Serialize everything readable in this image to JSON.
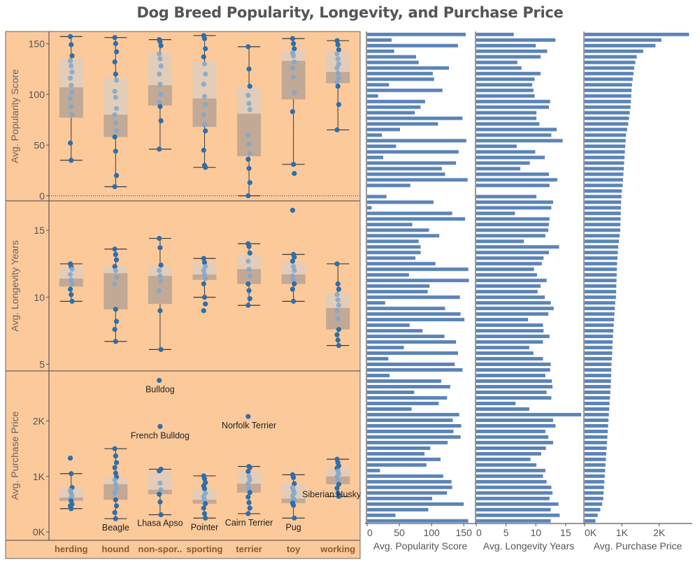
{
  "title": "Dog Breed Popularity, Longevity, and Purchase Price",
  "colors": {
    "panel_bg": "#fcc99b",
    "dot": "#2f6ea8",
    "dot_light": "#7da7cf",
    "box_upper": "#e3cdb9",
    "box_lower": "#c2a995",
    "bar": "#5b84b8",
    "axis_text": "#555555",
    "category_text": "#8b5a2b"
  },
  "chart_data": [
    {
      "type": "box",
      "ylabel": "Avg. Popularity Score",
      "y_ticks": [
        0,
        50,
        100,
        150
      ],
      "y_tick_labels": [
        "0",
        "50",
        "100",
        "150"
      ],
      "ylim": [
        -5,
        162
      ],
      "zero_reference_line": true,
      "categories": [
        "herding",
        "hound",
        "non-spor..",
        "sporting",
        "terrier",
        "toy",
        "working"
      ],
      "boxes": [
        {
          "min": 35,
          "q1": 77,
          "median": 107,
          "q3": 135,
          "max": 157,
          "points": [
            157,
            149,
            138,
            133,
            128,
            122,
            116,
            109,
            102,
            96,
            88,
            80,
            52,
            35
          ]
        },
        {
          "min": 9,
          "q1": 58,
          "median": 80,
          "q3": 116,
          "max": 156,
          "points": [
            156,
            150,
            142,
            132,
            120,
            114,
            103,
            97,
            86,
            80,
            72,
            64,
            58,
            44,
            20,
            9
          ]
        },
        {
          "min": 46,
          "q1": 89,
          "median": 109,
          "q3": 141,
          "max": 154,
          "points": [
            154,
            152,
            148,
            140,
            135,
            128,
            120,
            110,
            100,
            92,
            88,
            74,
            46
          ]
        },
        {
          "min": 28,
          "q1": 68,
          "median": 96,
          "q3": 132,
          "max": 158,
          "points": [
            158,
            155,
            145,
            137,
            130,
            120,
            110,
            98,
            90,
            80,
            70,
            64,
            45,
            30,
            28
          ]
        },
        {
          "min": 0,
          "q1": 39,
          "median": 81,
          "q3": 107,
          "max": 147,
          "points": [
            147,
            125,
            108,
            99,
            91,
            85,
            60,
            51,
            42,
            36,
            27,
            13,
            0
          ]
        },
        {
          "min": 31,
          "q1": 95,
          "median": 133,
          "q3": 143,
          "max": 155,
          "points": [
            155,
            150,
            145,
            141,
            138,
            132,
            126,
            117,
            102,
            83,
            31,
            22
          ]
        },
        {
          "min": 65,
          "q1": 111,
          "median": 122,
          "q3": 143,
          "max": 153,
          "points": [
            153,
            149,
            144,
            140,
            135,
            130,
            126,
            121,
            116,
            112,
            108,
            90,
            65
          ]
        }
      ]
    },
    {
      "type": "box",
      "ylabel": "Avg. Longevity Years",
      "y_ticks": [
        5,
        10,
        15
      ],
      "y_tick_labels": [
        "5",
        "10",
        "15"
      ],
      "ylim": [
        4.5,
        17.2
      ],
      "categories": [
        "herding",
        "hound",
        "non-spor..",
        "sporting",
        "terrier",
        "toy",
        "working"
      ],
      "boxes": [
        {
          "min": 9.7,
          "q1": 10.8,
          "median": 11.4,
          "q3": 12.2,
          "max": 12.5,
          "points": [
            12.5,
            12.3,
            12.1,
            11.7,
            11.3,
            11.0,
            10.6,
            10.2,
            9.7
          ]
        },
        {
          "min": 6.7,
          "q1": 9.1,
          "median": 11.8,
          "q3": 12.3,
          "max": 13.6,
          "points": [
            13.6,
            13.2,
            12.8,
            12.3,
            12.0,
            11.5,
            11.0,
            9.1,
            8.2,
            7.6,
            6.7
          ]
        },
        {
          "min": 6.1,
          "q1": 9.5,
          "median": 11.6,
          "q3": 12.3,
          "max": 14.4,
          "points": [
            14.4,
            13.7,
            12.4,
            12.0,
            11.6,
            11.2,
            10.5,
            9.0,
            6.1
          ]
        },
        {
          "min": 10.0,
          "q1": 11.3,
          "median": 11.7,
          "q3": 12.6,
          "max": 12.9,
          "points": [
            12.9,
            12.6,
            12.3,
            12.0,
            11.7,
            11.4,
            11.0,
            10.0,
            9.5,
            9.0
          ]
        },
        {
          "min": 9.4,
          "q1": 11.0,
          "median": 12.1,
          "q3": 13.2,
          "max": 14.0,
          "points": [
            14.0,
            13.8,
            13.3,
            12.7,
            12.1,
            11.6,
            11.0,
            10.5,
            9.9,
            9.4
          ]
        },
        {
          "min": 9.7,
          "q1": 11.0,
          "median": 11.7,
          "q3": 12.6,
          "max": 13.2,
          "points": [
            16.5,
            13.2,
            13.0,
            12.7,
            12.3,
            12.0,
            11.6,
            11.3,
            11.0,
            10.6,
            9.7
          ]
        },
        {
          "min": 6.4,
          "q1": 7.6,
          "median": 9.2,
          "q3": 10.3,
          "max": 12.5,
          "points": [
            12.5,
            11.0,
            10.6,
            10.2,
            9.8,
            9.4,
            9.0,
            8.4,
            7.6,
            7.2,
            6.8,
            6.4
          ]
        }
      ]
    },
    {
      "type": "box",
      "ylabel": "Avg. Purchase Price",
      "y_ticks": [
        0,
        1000,
        2000
      ],
      "y_tick_labels": [
        "0K",
        "1K",
        "2K"
      ],
      "ylim": [
        -150,
        2900
      ],
      "categories": [
        "herding",
        "hound",
        "non-spor..",
        "sporting",
        "terrier",
        "toy",
        "working"
      ],
      "boxes": [
        {
          "min": 420,
          "q1": 560,
          "median": 620,
          "q3": 800,
          "max": 1050,
          "points": [
            1330,
            1050,
            800,
            750,
            700,
            650,
            600,
            560,
            500,
            470,
            420
          ]
        },
        {
          "min": 240,
          "q1": 580,
          "median": 860,
          "q3": 970,
          "max": 1500,
          "points": [
            1500,
            1370,
            1250,
            1160,
            1060,
            990,
            940,
            860,
            780,
            700,
            580,
            470,
            350,
            240
          ]
        },
        {
          "min": 310,
          "q1": 680,
          "median": 760,
          "q3": 1100,
          "max": 1130,
          "points": [
            2730,
            1900,
            1130,
            1100,
            880,
            760,
            680,
            540,
            310
          ]
        },
        {
          "min": 250,
          "q1": 510,
          "median": 580,
          "q3": 780,
          "max": 1010,
          "points": [
            1010,
            960,
            890,
            830,
            780,
            700,
            640,
            580,
            510,
            430,
            330,
            250
          ]
        },
        {
          "min": 330,
          "q1": 710,
          "median": 870,
          "q3": 1090,
          "max": 1180,
          "points": [
            2080,
            1180,
            1160,
            1090,
            1000,
            940,
            870,
            780,
            710,
            630,
            530,
            430,
            330
          ]
        },
        {
          "min": 250,
          "q1": 520,
          "median": 600,
          "q3": 870,
          "max": 1030,
          "points": [
            1030,
            980,
            870,
            800,
            750,
            700,
            650,
            600,
            560,
            520,
            480,
            250
          ]
        },
        {
          "min": 640,
          "q1": 860,
          "median": 1000,
          "q3": 1150,
          "max": 1310,
          "points": [
            1310,
            1250,
            1190,
            1150,
            1100,
            1050,
            1000,
            940,
            860,
            790,
            700,
            640
          ]
        }
      ],
      "annotations": [
        {
          "label": "Bulldog",
          "category": "non-spor..",
          "value": 2730
        },
        {
          "label": "French Bulldog",
          "category": "non-spor..",
          "value": 1900
        },
        {
          "label": "Norfolk Terrier",
          "category": "terrier",
          "value": 2080
        },
        {
          "label": "Beagle",
          "category": "hound",
          "value": 240
        },
        {
          "label": "Lhasa Apso",
          "category": "non-spor..",
          "value": 310
        },
        {
          "label": "Pointer",
          "category": "sporting",
          "value": 250
        },
        {
          "label": "Cairn Terrier",
          "category": "terrier",
          "value": 330
        },
        {
          "label": "Pug",
          "category": "toy",
          "value": 250
        },
        {
          "label": "Siberian Husky",
          "category": "working",
          "value": 640
        }
      ]
    },
    {
      "type": "bar",
      "orientation": "horizontal",
      "xlabel": "Avg. Popularity Score",
      "x_ticks": [
        0,
        50,
        100,
        150
      ],
      "x_tick_labels": [
        "0",
        "50",
        "100",
        "150"
      ],
      "xlim": [
        0,
        165
      ],
      "values": [
        153,
        38,
        141,
        42,
        76,
        80,
        127,
        102,
        104,
        34,
        117,
        17,
        90,
        83,
        74,
        148,
        110,
        51,
        23,
        154,
        45,
        142,
        25,
        138,
        116,
        121,
        156,
        67,
        0,
        30,
        103,
        7,
        132,
        152,
        70,
        96,
        112,
        80,
        83,
        83,
        75,
        106,
        157,
        65,
        158,
        97,
        94,
        144,
        28,
        121,
        145,
        151,
        66,
        86,
        120,
        138,
        57,
        141,
        33,
        136,
        148,
        35,
        115,
        129,
        73,
        124,
        111,
        69,
        143,
        133,
        146,
        134,
        145,
        125,
        98,
        89,
        114,
        92,
        20,
        118,
        131,
        132,
        124,
        101,
        150,
        95,
        44,
        157
      ]
    },
    {
      "type": "bar",
      "orientation": "horizontal",
      "xlabel": "Avg. Longevity Years",
      "x_ticks": [
        0,
        5,
        10,
        15
      ],
      "x_tick_labels": [
        "0",
        "5",
        "10",
        "15"
      ],
      "xlim": [
        0,
        17.6
      ],
      "values": [
        6.3,
        13.3,
        10.0,
        11.9,
        10.8,
        6.9,
        7.6,
        10.8,
        9.8,
        9.4,
        9.6,
        9.8,
        12.4,
        12.2,
        10.1,
        10.1,
        10.6,
        13.5,
        12.6,
        14.5,
        6.8,
        9.9,
        11.5,
        9.0,
        7.4,
        12.2,
        13.6,
        12.3,
        0.0,
        10.1,
        12.9,
        12.6,
        6.5,
        12.3,
        12.2,
        12.1,
        11.6,
        8.0,
        13.9,
        12.2,
        11.3,
        11.0,
        9.7,
        10.2,
        11.8,
        10.8,
        10.3,
        11.5,
        12.5,
        13.0,
        12.1,
        8.7,
        11.2,
        11.3,
        12.3,
        11.2,
        8.9,
        9.6,
        11.2,
        12.5,
        12.4,
        11.6,
        12.7,
        12.8,
        11.8,
        12.6,
        6.6,
        8.9,
        17.6,
        12.9,
        13.3,
        11.6,
        12.1,
        12.9,
        11.7,
        10.9,
        9.1,
        10.1,
        11.6,
        11.2,
        11.8,
        12.6,
        12.8,
        12.3,
        13.8,
        12.5,
        14.0,
        12.5
      ]
    },
    {
      "type": "bar",
      "orientation": "horizontal",
      "xlabel": "Avg. Purchase Price",
      "x_ticks": [
        0,
        1000,
        2000
      ],
      "x_tick_labels": [
        "0K",
        "1K",
        "2K"
      ],
      "xlim": [
        0,
        2850
      ],
      "values": [
        2800,
        2060,
        1900,
        1570,
        1400,
        1360,
        1330,
        1310,
        1290,
        1270,
        1260,
        1250,
        1240,
        1230,
        1210,
        1190,
        1170,
        1140,
        1110,
        1100,
        1090,
        1080,
        1070,
        1060,
        1050,
        1040,
        1030,
        1020,
        1000,
        990,
        980,
        975,
        970,
        965,
        960,
        955,
        940,
        920,
        900,
        890,
        880,
        870,
        865,
        860,
        855,
        850,
        845,
        840,
        820,
        810,
        800,
        790,
        780,
        770,
        760,
        750,
        745,
        740,
        730,
        720,
        715,
        710,
        705,
        700,
        690,
        680,
        670,
        660,
        650,
        640,
        630,
        620,
        610,
        600,
        590,
        580,
        570,
        560,
        550,
        540,
        530,
        520,
        510,
        500,
        470,
        420,
        350,
        290
      ]
    }
  ]
}
